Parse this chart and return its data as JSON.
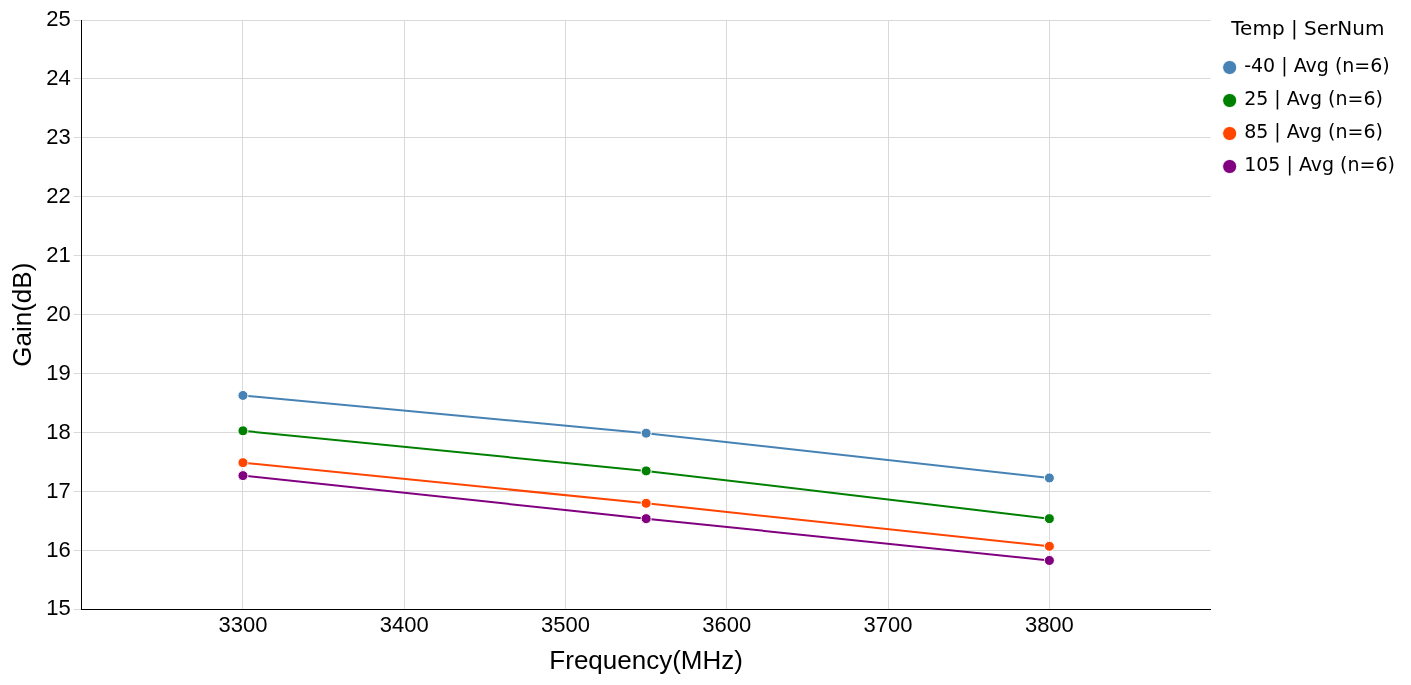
{
  "chart_data": {
    "type": "line",
    "xlabel": "Frequency(MHz)",
    "ylabel": "Gain(dB)",
    "legend_title": "Temp | SerNum",
    "x": [
      3300,
      3550,
      3800
    ],
    "series": [
      {
        "name": "-40 | Avg (n=6)",
        "color": "#4682b4",
        "values": [
          18.63,
          17.99,
          17.23
        ]
      },
      {
        "name": "25 | Avg (n=6)",
        "color": "#008000",
        "values": [
          18.03,
          17.35,
          16.54
        ]
      },
      {
        "name": "85 | Avg (n=6)",
        "color": "#ff4500",
        "values": [
          17.49,
          16.8,
          16.07
        ]
      },
      {
        "name": "105 | Avg (n=6)",
        "color": "#800080",
        "values": [
          17.27,
          16.54,
          15.83
        ]
      }
    ],
    "xlim": [
      3200,
      3900
    ],
    "xticks": [
      3300,
      3400,
      3500,
      3600,
      3700,
      3800
    ],
    "ylim": [
      15,
      25
    ],
    "yticks": [
      15,
      16,
      17,
      18,
      19,
      20,
      21,
      22,
      23,
      24,
      25
    ],
    "grid": true,
    "legend": "top right",
    "marker": "circle",
    "line_style": "solid"
  }
}
